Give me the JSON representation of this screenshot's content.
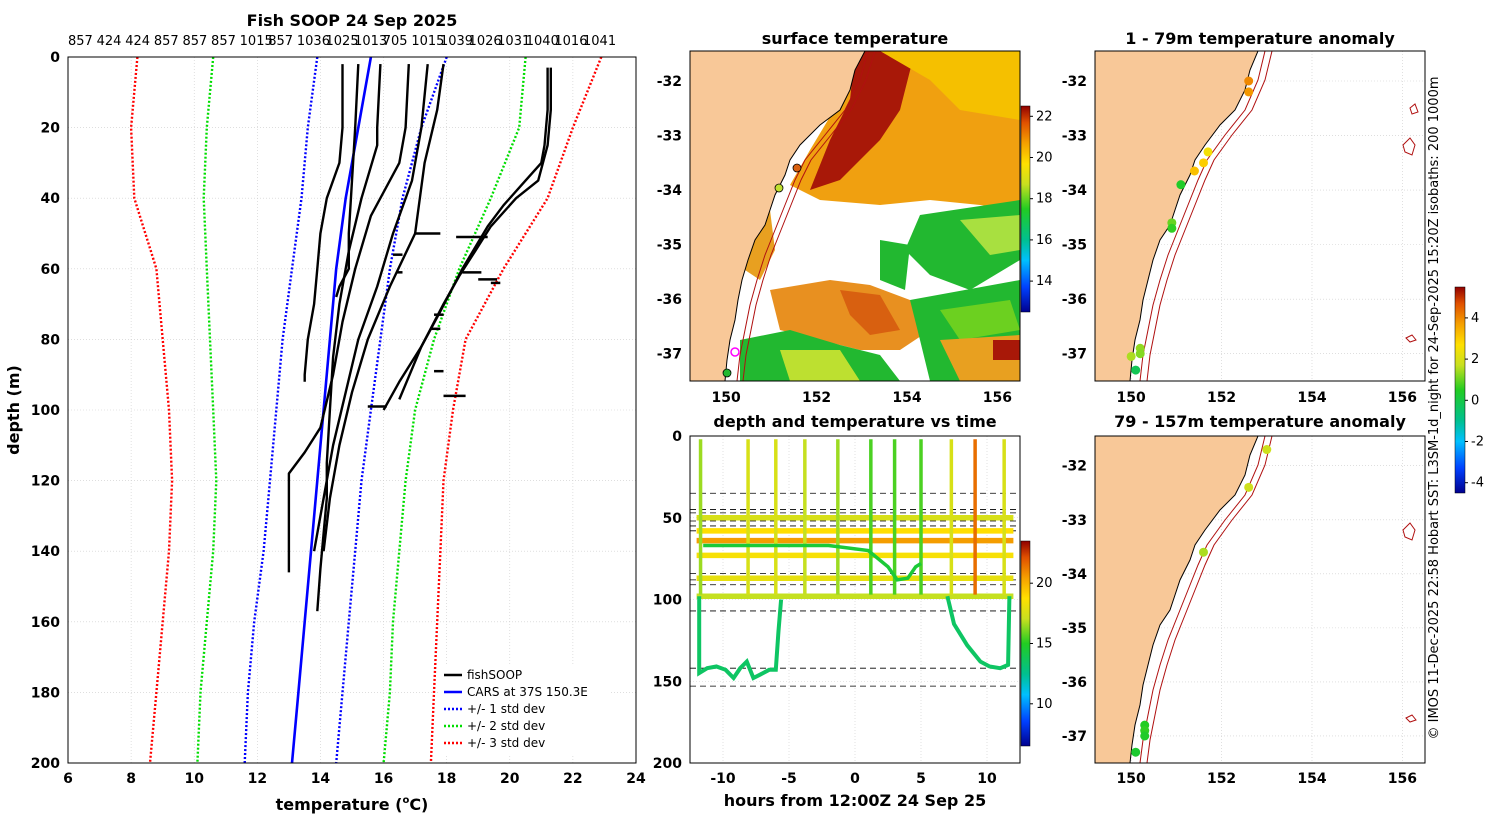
{
  "colors": {
    "land": "#f8c898",
    "profile": "#000000",
    "cars": "#0000ff",
    "std1": "#0000ff",
    "std2": "#00dd00",
    "std3": "#ff0000",
    "isobath": "#b01010",
    "grid": "#cccccc"
  },
  "icons": {
    "markers": "filled-circle",
    "land": "filled-polygon"
  },
  "credit": "© IMOS 11-Dec-2025 22:58 Hobart SST: L3SM-1d_night for 24-Sep-2025 15:20Z isobaths: 200  1000m",
  "chart_data": [
    {
      "id": "profiles",
      "type": "line",
      "title": "Fish SOOP 24 Sep 2025",
      "xlabel_main": "temperature (",
      "xlabel_sup": "o",
      "xlabel_end": "C)",
      "ylabel": "depth (m)",
      "xlim": [
        6,
        24
      ],
      "ylim": [
        0,
        200
      ],
      "y_reversed": true,
      "xticks": [
        "6",
        "8",
        "10",
        "12",
        "14",
        "16",
        "18",
        "20",
        "22",
        "24"
      ],
      "yticks": [
        "0",
        "20",
        "40",
        "60",
        "80",
        "100",
        "120",
        "140",
        "160",
        "180",
        "200"
      ],
      "top_labels": [
        "857",
        "424",
        "424",
        "857",
        "857",
        "857",
        "1015",
        "857",
        "1036",
        "1025",
        "1013",
        "705",
        "1015",
        "1039",
        "1026",
        "1031",
        "1040",
        "1016",
        "1041"
      ],
      "legend": [
        "fishSOOP",
        "CARS at 37S 150.3E",
        "+/- 1 std dev",
        "+/- 2 std dev",
        "+/- 3 std dev"
      ],
      "series": [
        {
          "name": "cars",
          "x": [
            15.6,
            15.2,
            14.8,
            14.5,
            14.3,
            14.1,
            13.9,
            13.7,
            13.5,
            13.3,
            13.1
          ],
          "y": [
            0,
            20,
            40,
            60,
            80,
            100,
            120,
            140,
            160,
            180,
            200
          ]
        },
        {
          "name": "std1_left",
          "x": [
            13.9,
            13.6,
            13.4,
            13.1,
            12.8,
            12.6,
            12.4,
            12.2,
            11.9,
            11.7,
            11.6
          ],
          "y": [
            0,
            20,
            40,
            60,
            80,
            100,
            120,
            140,
            160,
            180,
            200
          ]
        },
        {
          "name": "std1_right",
          "x": [
            18,
            17.2,
            16.6,
            16.2,
            15.9,
            15.6,
            15.3,
            15.1,
            14.9,
            14.7,
            14.5
          ],
          "y": [
            0,
            20,
            40,
            60,
            80,
            100,
            120,
            140,
            160,
            180,
            200
          ]
        },
        {
          "name": "std2_left",
          "x": [
            10.6,
            10.4,
            10.3,
            10.4,
            10.5,
            10.6,
            10.7,
            10.6,
            10.4,
            10.2,
            10.1
          ],
          "y": [
            0,
            20,
            40,
            60,
            80,
            100,
            120,
            140,
            160,
            180,
            200
          ]
        },
        {
          "name": "std2_right",
          "x": [
            20.5,
            20.3,
            19.4,
            18.4,
            17.6,
            17.0,
            16.7,
            16.5,
            16.3,
            16.2,
            16.0
          ],
          "y": [
            0,
            20,
            40,
            60,
            80,
            100,
            120,
            140,
            160,
            180,
            200
          ]
        },
        {
          "name": "std3_left",
          "x": [
            8.2,
            8.0,
            8.1,
            8.8,
            9.0,
            9.2,
            9.3,
            9.2,
            9.0,
            8.8,
            8.6
          ],
          "y": [
            0,
            20,
            40,
            60,
            80,
            100,
            120,
            140,
            160,
            180,
            200
          ]
        },
        {
          "name": "std3_right",
          "x": [
            22.9,
            22.0,
            21.2,
            19.8,
            18.6,
            18.2,
            17.9,
            17.8,
            17.7,
            17.6,
            17.5
          ],
          "y": [
            0,
            20,
            40,
            60,
            80,
            100,
            120,
            140,
            160,
            180,
            200
          ]
        },
        {
          "name": "fish1",
          "x": [
            14.7,
            14.7,
            14.6,
            14.2,
            14.0,
            13.9,
            13.8,
            13.6,
            13.5,
            13.5
          ],
          "y": [
            2,
            20,
            30,
            40,
            50,
            60,
            70,
            80,
            90,
            92
          ]
        },
        {
          "name": "fish2",
          "x": [
            15.2,
            15.1,
            15.0,
            14.9,
            14.9,
            14.6,
            14.5
          ],
          "y": [
            2,
            20,
            35,
            50,
            60,
            65,
            68
          ]
        },
        {
          "name": "fish3",
          "x": [
            15.9,
            15.8,
            15.8,
            15.3,
            14.9,
            14.6,
            14.4,
            14.3,
            14.2,
            14.2,
            14.1,
            14.0,
            13.9
          ],
          "y": [
            2,
            20,
            25,
            40,
            55,
            70,
            85,
            100,
            115,
            125,
            135,
            145,
            157
          ]
        },
        {
          "name": "fish4",
          "x": [
            16.8,
            16.7,
            16.5,
            15.6,
            15.1,
            14.7,
            14.4,
            14.0,
            13.5,
            13.0,
            13.0,
            13.0
          ],
          "y": [
            2,
            20,
            30,
            45,
            60,
            75,
            90,
            105,
            112,
            118,
            130,
            146
          ]
        },
        {
          "name": "fish5",
          "x": [
            17.4,
            17.2,
            16.9,
            16.3,
            15.8,
            15.2,
            14.8,
            14.4,
            14.1,
            13.8
          ],
          "y": [
            2,
            20,
            35,
            50,
            65,
            80,
            95,
            110,
            125,
            140
          ]
        },
        {
          "name": "fish6",
          "x": [
            17.9,
            17.7,
            17.3,
            17.0,
            16.2,
            15.5,
            15.0,
            14.6,
            14.3,
            14.1
          ],
          "y": [
            2,
            15,
            30,
            50,
            65,
            80,
            95,
            110,
            125,
            140
          ]
        },
        {
          "name": "fish7",
          "x": [
            21.2,
            21.2,
            21.1,
            21.0,
            20.4,
            19.8,
            19.3,
            18.5,
            17.8,
            17.2,
            16.5,
            16.0
          ],
          "y": [
            3,
            15,
            25,
            30,
            36,
            42,
            48,
            60,
            72,
            82,
            92,
            100
          ]
        },
        {
          "name": "fish8",
          "x": [
            21.3,
            21.3,
            21.2,
            20.9,
            20.2,
            19.4,
            18.9,
            18.4,
            17.9,
            17.2,
            16.5
          ],
          "y": [
            3,
            15,
            25,
            35,
            40,
            48,
            55,
            62,
            70,
            82,
            97
          ]
        }
      ]
    },
    {
      "id": "sst_map",
      "type": "heatmap",
      "title": "surface temperature",
      "xticks": [
        "150",
        "152",
        "154",
        "156"
      ],
      "yticks": [
        "-32",
        "-33",
        "-34",
        "-35",
        "-36",
        "-37"
      ],
      "xlim": [
        149.2,
        156.5
      ],
      "ylim": [
        -37.5,
        -31.45
      ],
      "colorbar": {
        "ticks": [
          "14",
          "16",
          "18",
          "20",
          "22"
        ],
        "range": [
          12.5,
          22.5
        ]
      }
    },
    {
      "id": "time_series",
      "type": "scatter",
      "title": "depth and temperature vs time",
      "xlabel": "hours from 12:00Z 24 Sep 25",
      "xticks": [
        "-10",
        "-5",
        "0",
        "5",
        "10"
      ],
      "yticks": [
        "0",
        "50",
        "100",
        "150",
        "200"
      ],
      "xlim": [
        -12.5,
        12.5
      ],
      "ylim": [
        0,
        200
      ],
      "colorbar": {
        "ticks": [
          "10",
          "15",
          "20"
        ],
        "range": [
          6.5,
          23.5
        ]
      },
      "hlines": [
        35,
        45,
        47,
        52,
        55,
        58,
        84,
        88,
        91,
        107,
        142,
        153
      ]
    },
    {
      "id": "anomaly_top",
      "type": "scatter",
      "title": "1 - 79m temperature anomaly",
      "xticks": [
        "150",
        "152",
        "154",
        "156"
      ],
      "yticks": [
        "-32",
        "-33",
        "-34",
        "-35",
        "-36",
        "-37"
      ],
      "colorbar": {
        "ticks": [
          "-4",
          "-2",
          "0",
          "2",
          "4"
        ],
        "range": [
          -4.5,
          5.5
        ]
      },
      "points": [
        {
          "lon": 152.6,
          "lat": -32.0,
          "anom": 4.0
        },
        {
          "lon": 152.6,
          "lat": -32.2,
          "anom": 3.8
        },
        {
          "lon": 151.7,
          "lat": -33.3,
          "anom": 2.5
        },
        {
          "lon": 151.6,
          "lat": -33.5,
          "anom": 3.0
        },
        {
          "lon": 151.4,
          "lat": -33.65,
          "anom": 3.2
        },
        {
          "lon": 151.1,
          "lat": -33.9,
          "anom": 0.4
        },
        {
          "lon": 150.9,
          "lat": -34.6,
          "anom": 1.0
        },
        {
          "lon": 150.9,
          "lat": -34.7,
          "anom": 0.6
        },
        {
          "lon": 150.2,
          "lat": -36.9,
          "anom": 1.3
        },
        {
          "lon": 150.2,
          "lat": -37.0,
          "anom": 1.2
        },
        {
          "lon": 150.0,
          "lat": -37.05,
          "anom": 1.5
        },
        {
          "lon": 150.1,
          "lat": -37.3,
          "anom": -0.2
        }
      ]
    },
    {
      "id": "anomaly_bottom",
      "type": "scatter",
      "title": "79 - 157m temperature anomaly",
      "xticks": [
        "150",
        "152",
        "154",
        "156"
      ],
      "yticks": [
        "-32",
        "-33",
        "-34",
        "-35",
        "-36",
        "-37"
      ],
      "points": [
        {
          "lon": 153.0,
          "lat": -31.7,
          "anom": 1.8
        },
        {
          "lon": 152.6,
          "lat": -32.4,
          "anom": 1.8
        },
        {
          "lon": 151.6,
          "lat": -33.6,
          "anom": 1.5
        },
        {
          "lon": 150.3,
          "lat": -36.8,
          "anom": 0.5
        },
        {
          "lon": 150.3,
          "lat": -36.9,
          "anom": 0.6
        },
        {
          "lon": 150.3,
          "lat": -37.0,
          "anom": 0.4
        },
        {
          "lon": 150.1,
          "lat": -37.3,
          "anom": 0.3
        }
      ]
    }
  ]
}
